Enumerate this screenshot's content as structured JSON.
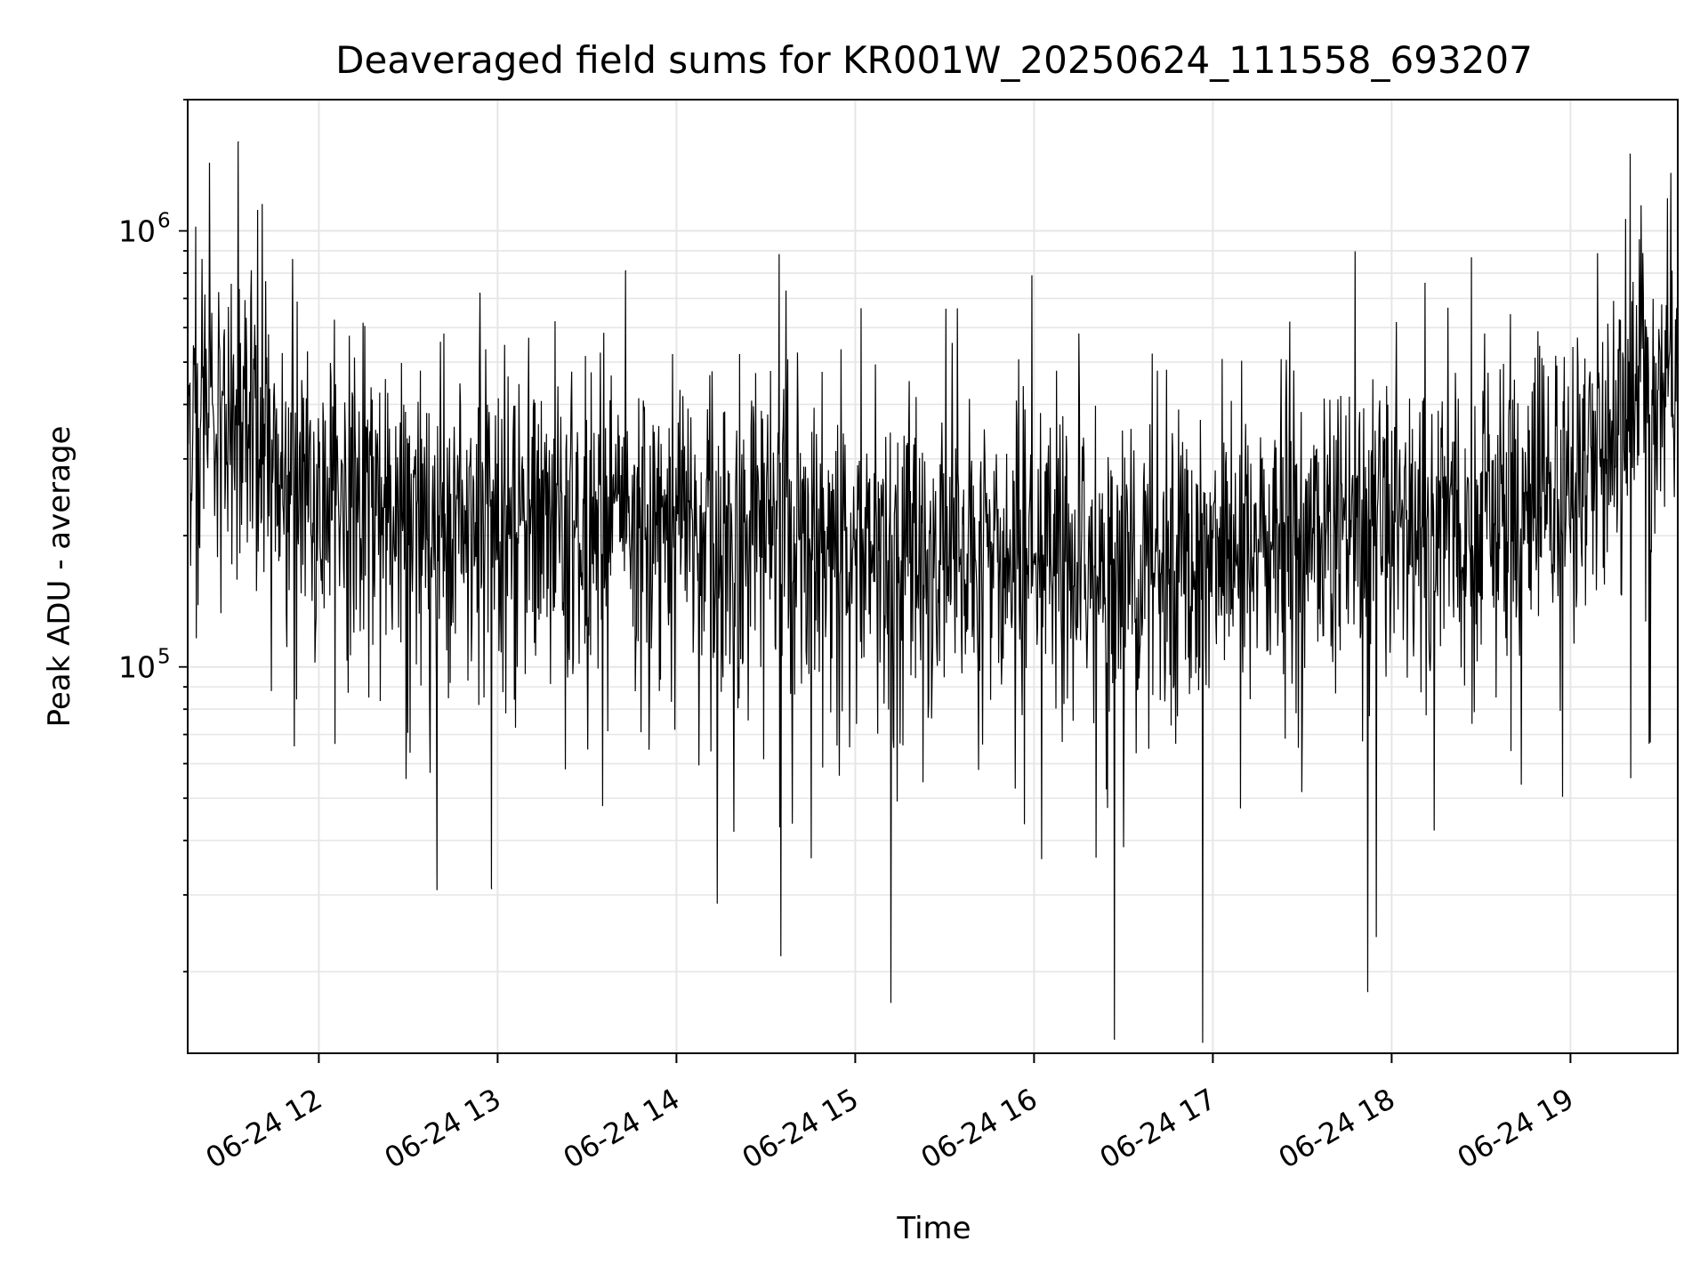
{
  "chart_data": {
    "type": "line",
    "title": "Deaveraged field sums for KR001W_20250624_111558_693207",
    "xlabel": "Time",
    "ylabel": "Peak ADU - average",
    "yscale": "log",
    "ylim": [
      13000,
      2000000
    ],
    "xlim": [
      "2025-06-24T11:16",
      "2025-06-24T19:36"
    ],
    "grid": true,
    "line_color": "#000000",
    "x_ticks": [
      {
        "label": "06-24 12",
        "time": "2025-06-24T12:00"
      },
      {
        "label": "06-24 13",
        "time": "2025-06-24T13:00"
      },
      {
        "label": "06-24 14",
        "time": "2025-06-24T14:00"
      },
      {
        "label": "06-24 15",
        "time": "2025-06-24T15:00"
      },
      {
        "label": "06-24 16",
        "time": "2025-06-24T16:00"
      },
      {
        "label": "06-24 17",
        "time": "2025-06-24T17:00"
      },
      {
        "label": "06-24 18",
        "time": "2025-06-24T18:00"
      },
      {
        "label": "06-24 19",
        "time": "2025-06-24T19:00"
      }
    ],
    "y_ticks": [
      {
        "base": "10",
        "exp": "5",
        "value": 100000
      },
      {
        "base": "10",
        "exp": "6",
        "value": 1000000
      }
    ],
    "envelope": [
      {
        "time": "2025-06-24T11:16",
        "median": 380000
      },
      {
        "time": "2025-06-24T11:35",
        "median": 420000
      },
      {
        "time": "2025-06-24T11:45",
        "median": 300000
      },
      {
        "time": "2025-06-24T12:00",
        "median": 260000
      },
      {
        "time": "2025-06-24T12:30",
        "median": 215000
      },
      {
        "time": "2025-06-24T13:00",
        "median": 210000
      },
      {
        "time": "2025-06-24T13:30",
        "median": 210000
      },
      {
        "time": "2025-06-24T14:00",
        "median": 205000
      },
      {
        "time": "2025-06-24T14:30",
        "median": 195000
      },
      {
        "time": "2025-06-24T15:00",
        "median": 180000
      },
      {
        "time": "2025-06-24T15:30",
        "median": 175000
      },
      {
        "time": "2025-06-24T16:00",
        "median": 170000
      },
      {
        "time": "2025-06-24T16:30",
        "median": 175000
      },
      {
        "time": "2025-06-24T17:00",
        "median": 185000
      },
      {
        "time": "2025-06-24T17:30",
        "median": 195000
      },
      {
        "time": "2025-06-24T18:00",
        "median": 205000
      },
      {
        "time": "2025-06-24T18:30",
        "median": 215000
      },
      {
        "time": "2025-06-24T19:00",
        "median": 270000
      },
      {
        "time": "2025-06-24T19:20",
        "median": 420000
      },
      {
        "time": "2025-06-24T19:36",
        "median": 480000
      }
    ],
    "notable_points": [
      {
        "time": "2025-06-24T11:33",
        "value": 1600000
      },
      {
        "time": "2025-06-24T11:41",
        "value": 1150000
      },
      {
        "time": "2025-06-24T12:42",
        "value": 580000
      },
      {
        "time": "2025-06-24T12:54",
        "value": 720000
      },
      {
        "time": "2025-06-24T12:58",
        "value": 31000
      },
      {
        "time": "2025-06-24T13:43",
        "value": 810000
      },
      {
        "time": "2025-06-24T15:12",
        "value": 17000
      },
      {
        "time": "2025-06-24T16:15",
        "value": 580000
      },
      {
        "time": "2025-06-24T16:27",
        "value": 14000
      },
      {
        "time": "2025-06-24T17:52",
        "value": 18000
      },
      {
        "time": "2025-06-24T19:20",
        "value": 1500000
      }
    ]
  }
}
